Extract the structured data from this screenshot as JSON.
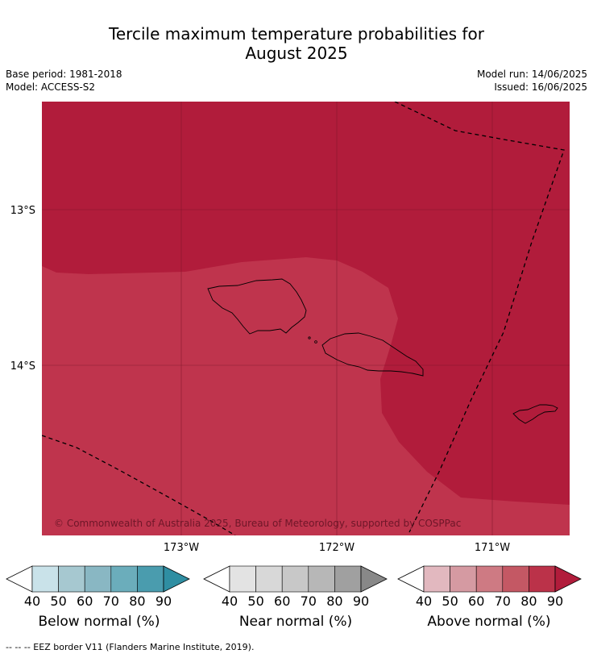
{
  "title_line1": "Tercile maximum temperature probabilities for",
  "title_line2": "August 2025",
  "base_period": "Base period: 1981-2018",
  "model": "Model: ACCESS-S2",
  "model_run": "Model run: 14/06/2025",
  "issued": "Issued: 16/06/2025",
  "map": {
    "lat_labels": [
      "13°S",
      "14°S"
    ],
    "lon_labels": [
      "173°W",
      "172°W",
      "171°W"
    ],
    "copyright": "© Commonwealth of Australia 2025, Bureau of Meteorology, supported by COSPPac",
    "colors": {
      "dark": "#b11c3b",
      "medium": "#bf344d",
      "grid": "#7a1528",
      "ocean_bg": "#b11c3b"
    }
  },
  "colorbars": [
    {
      "label": "Below normal (%)",
      "ticks": [
        "40",
        "50",
        "60",
        "70",
        "80",
        "90"
      ],
      "colors": [
        "#c9e2e9",
        "#a6c8d0",
        "#89b7c3",
        "#6badbb",
        "#4a9cae",
        "#2f8ea2"
      ]
    },
    {
      "label": "Near normal (%)",
      "ticks": [
        "40",
        "50",
        "60",
        "70",
        "80",
        "90"
      ],
      "colors": [
        "#e3e3e3",
        "#d8d8d8",
        "#c8c8c8",
        "#b7b7b7",
        "#a0a0a0",
        "#888888"
      ]
    },
    {
      "label": "Above normal (%)",
      "ticks": [
        "40",
        "50",
        "60",
        "70",
        "80",
        "90"
      ],
      "colors": [
        "#e2b8bf",
        "#d59aa2",
        "#ce7a83",
        "#c45864",
        "#bb3249",
        "#b11c3b"
      ]
    }
  ],
  "footer": "-- -- -- EEZ border V11 (Flanders Marine Institute, 2019)."
}
